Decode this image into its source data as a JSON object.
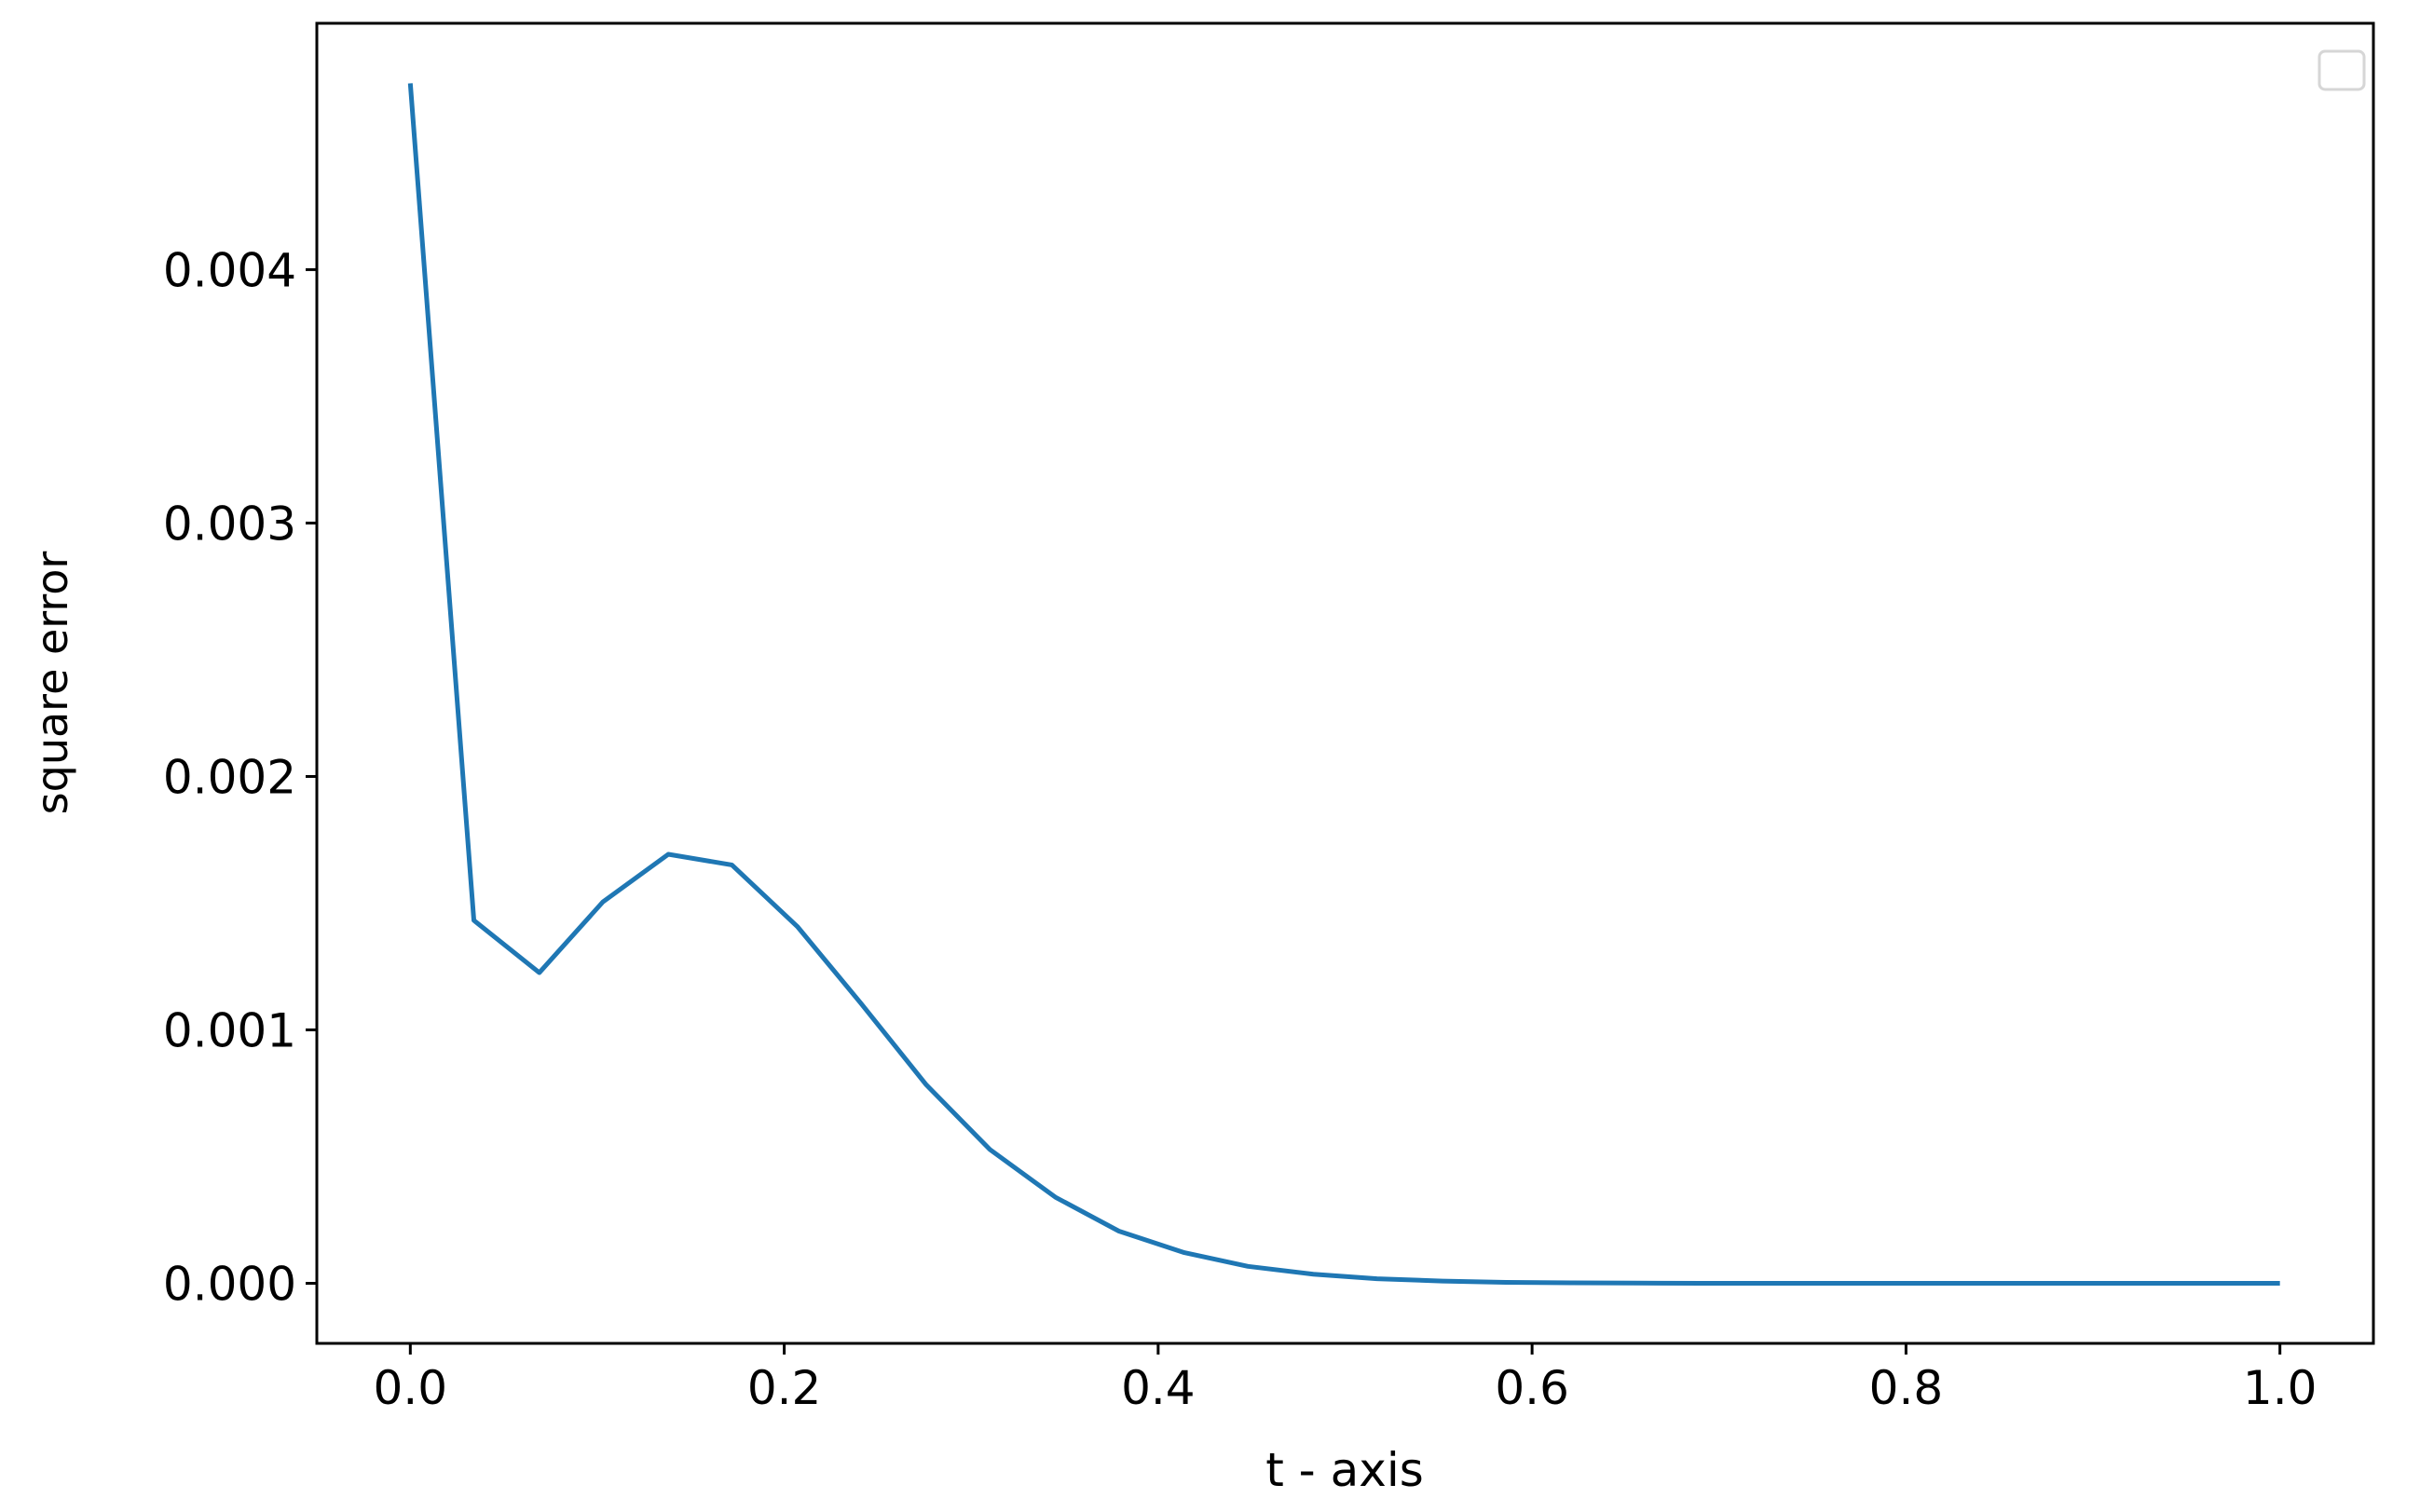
{
  "chart_data": {
    "type": "line",
    "x_label": "t - axis",
    "y_label": "square error",
    "color": "#1f77b4",
    "x": [
      0,
      0.034,
      0.069,
      0.103,
      0.138,
      0.172,
      0.207,
      0.241,
      0.276,
      0.31,
      0.345,
      0.379,
      0.414,
      0.448,
      0.483,
      0.517,
      0.552,
      0.586,
      0.621,
      0.655,
      0.69,
      0.724,
      0.759,
      0.793,
      0.828,
      0.862,
      0.897,
      0.931,
      0.966,
      1
    ],
    "values": [
      0.004735,
      0.001432,
      0.001226,
      0.001505,
      0.001693,
      0.001651,
      0.001408,
      0.001105,
      0.000783,
      0.000528,
      0.00034,
      0.000206,
      0.000121,
      6.7e-05,
      3.6e-05,
      1.8e-05,
      9e-06,
      4e-06,
      2e-06,
      1e-06,
      0,
      0,
      0,
      0,
      0,
      0,
      0,
      0,
      0,
      0
    ],
    "xlim": [
      -0.05,
      1.05
    ],
    "ylim": [
      -0.000237,
      0.004972
    ],
    "xticks": [
      {
        "value": 0,
        "label": "0.0"
      },
      {
        "value": 0.2,
        "label": "0.2"
      },
      {
        "value": 0.4,
        "label": "0.4"
      },
      {
        "value": 0.6,
        "label": "0.6"
      },
      {
        "value": 0.8,
        "label": "0.8"
      },
      {
        "value": 1,
        "label": "1.0"
      }
    ],
    "yticks": [
      {
        "value": 0,
        "label": "0.000"
      },
      {
        "value": 0.001,
        "label": "0.001"
      },
      {
        "value": 0.002,
        "label": "0.002"
      },
      {
        "value": 0.003,
        "label": "0.003"
      },
      {
        "value": 0.004,
        "label": "0.004"
      }
    ]
  }
}
